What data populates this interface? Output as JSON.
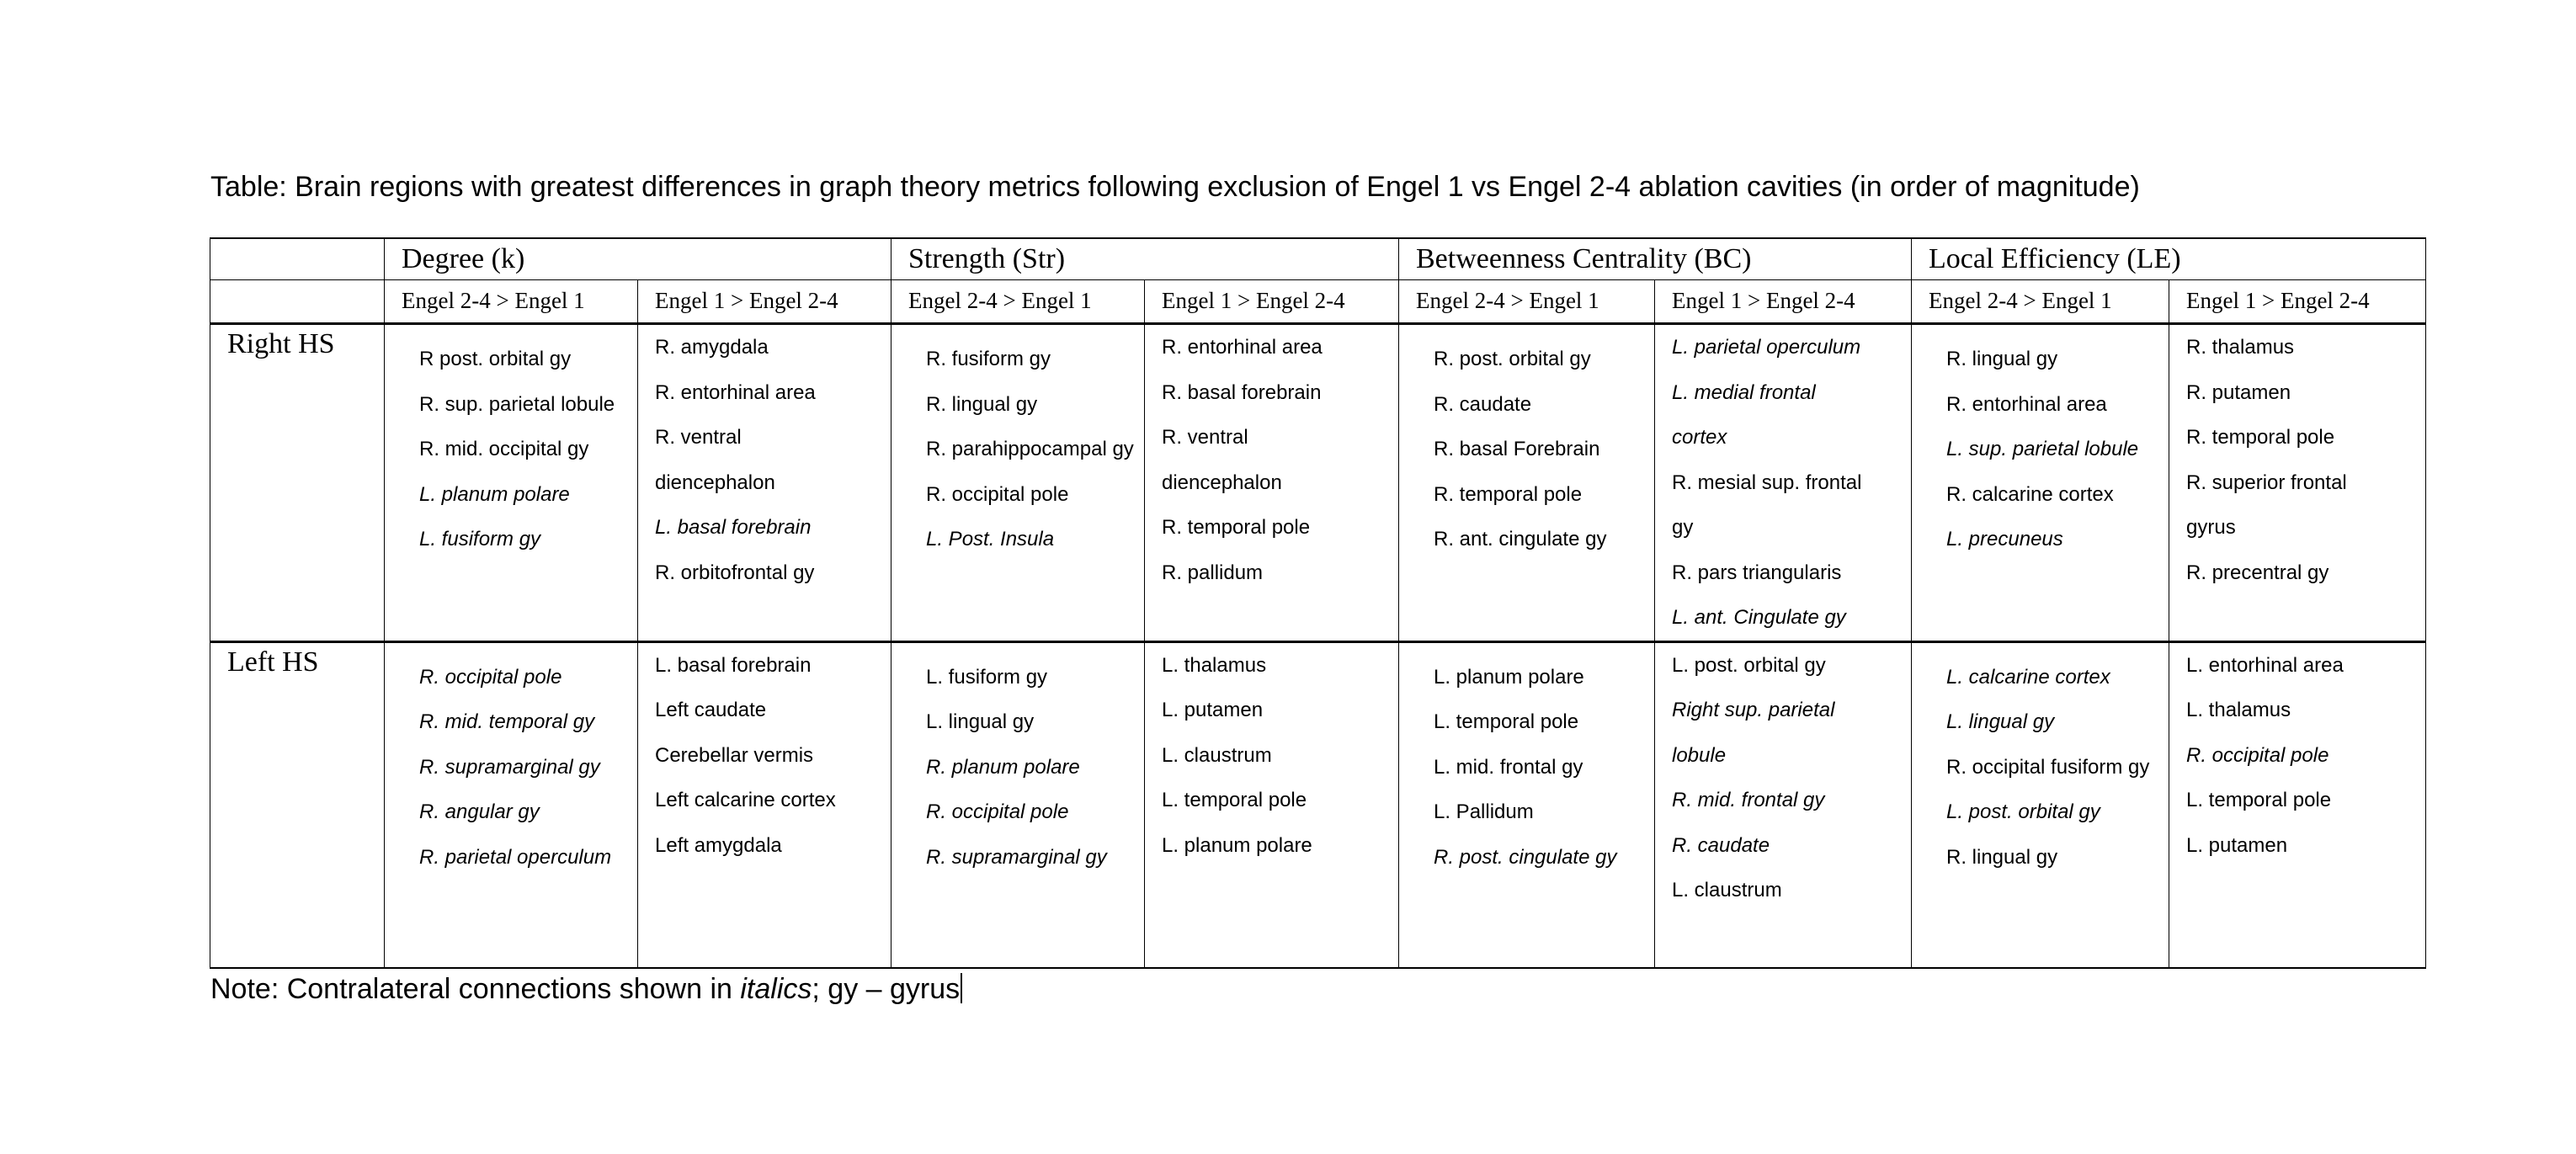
{
  "title": "Table: Brain regions with greatest differences in graph theory metrics following exclusion of Engel 1 vs Engel 2-4 ablation cavities (in order of magnitude)",
  "metrics": [
    "Degree (k)",
    "Strength (Str)",
    "Betweenness Centrality (BC)",
    "Local Efficiency (LE)"
  ],
  "subheaders": [
    "Engel 2-4 > Engel 1",
    "Engel 1 > Engel 2-4",
    "Engel 2-4 > Engel 1",
    "Engel 1 > Engel 2-4",
    "Engel 2-4 > Engel 1",
    "Engel 1 > Engel 2-4",
    "Engel 2-4 > Engel 1",
    "Engel 1 > Engel 2-4"
  ],
  "rows": [
    {
      "label": "Right HS",
      "cells": [
        [
          {
            "t": "R post. orbital gy"
          },
          {
            "t": "R. sup. parietal lobule"
          },
          {
            "t": "R. mid. occipital gy"
          },
          {
            "t": "L. planum polare",
            "i": true
          },
          {
            "t": "L. fusiform gy",
            "i": true
          }
        ],
        [
          {
            "t": "R. amygdala"
          },
          {
            "t": "R. entorhinal area"
          },
          {
            "t": "R. ventral\ndiencephalon"
          },
          {
            "t": "L. basal forebrain",
            "i": true
          },
          {
            "t": "R. orbitofrontal gy"
          }
        ],
        [
          {
            "t": "R. fusiform gy"
          },
          {
            "t": "R. lingual gy"
          },
          {
            "t": "R. parahippocampal gy"
          },
          {
            "t": "R. occipital pole"
          },
          {
            "t": "L. Post. Insula",
            "i": true
          }
        ],
        [
          {
            "t": "R. entorhinal area"
          },
          {
            "t": "R. basal forebrain"
          },
          {
            "t": "R. ventral\ndiencephalon"
          },
          {
            "t": "R. temporal pole"
          },
          {
            "t": "R. pallidum"
          }
        ],
        [
          {
            "t": "R. post. orbital gy"
          },
          {
            "t": "R. caudate"
          },
          {
            "t": "R. basal Forebrain"
          },
          {
            "t": "R. temporal pole"
          },
          {
            "t": "R. ant. cingulate gy"
          }
        ],
        [
          {
            "t": "L. parietal operculum",
            "i": true
          },
          {
            "t": "L. medial frontal\ncortex",
            "i": true
          },
          {
            "t": "R. mesial sup. frontal\ngy"
          },
          {
            "t": "R. pars triangularis"
          },
          {
            "t": "L. ant. Cingulate gy",
            "i": true
          }
        ],
        [
          {
            "t": "R. lingual gy"
          },
          {
            "t": "R. entorhinal area"
          },
          {
            "t": "L. sup. parietal lobule",
            "i": true
          },
          {
            "t": "R. calcarine cortex"
          },
          {
            "t": "L. precuneus",
            "i": true
          }
        ],
        [
          {
            "t": "R. thalamus"
          },
          {
            "t": "R. putamen"
          },
          {
            "t": "R. temporal pole"
          },
          {
            "t": "R. superior frontal\ngyrus"
          },
          {
            "t": "R. precentral gy"
          }
        ]
      ]
    },
    {
      "label": "Left HS",
      "cells": [
        [
          {
            "t": "R. occipital pole",
            "i": true
          },
          {
            "t": "R. mid. temporal gy",
            "i": true
          },
          {
            "t": "R. supramarginal gy",
            "i": true
          },
          {
            "t": "R. angular gy",
            "i": true
          },
          {
            "t": "R. parietal operculum",
            "i": true
          }
        ],
        [
          {
            "t": "L. basal forebrain"
          },
          {
            "t": "Left caudate"
          },
          {
            "t": "Cerebellar vermis"
          },
          {
            "t": "Left calcarine cortex"
          },
          {
            "t": "Left amygdala"
          }
        ],
        [
          {
            "t": "L. fusiform gy"
          },
          {
            "t": "L. lingual gy"
          },
          {
            "t": "R. planum polare",
            "i": true
          },
          {
            "t": "R. occipital pole",
            "i": true
          },
          {
            "t": "R. supramarginal gy",
            "i": true
          }
        ],
        [
          {
            "t": "L. thalamus"
          },
          {
            "t": "L. putamen"
          },
          {
            "t": "L. claustrum"
          },
          {
            "t": "L. temporal pole"
          },
          {
            "t": "L. planum polare"
          }
        ],
        [
          {
            "t": "L. planum polare"
          },
          {
            "t": "L. temporal pole"
          },
          {
            "t": "L. mid. frontal gy"
          },
          {
            "t": "L. Pallidum"
          },
          {
            "t": "R. post. cingulate gy",
            "i": true
          }
        ],
        [
          {
            "t": "L. post. orbital gy"
          },
          {
            "t": "Right sup. parietal\nlobule",
            "i": true
          },
          {
            "t": "R. mid. frontal gy",
            "i": true
          },
          {
            "t": "R. caudate",
            "i": true
          },
          {
            "t": "L. claustrum"
          }
        ],
        [
          {
            "t": "L. calcarine cortex",
            "i": true
          },
          {
            "t": "L. lingual gy",
            "i": true
          },
          {
            "t": "R. occipital fusiform gy"
          },
          {
            "t": "L. post. orbital gy",
            "i": true
          },
          {
            "t": "R. lingual gy"
          }
        ],
        [
          {
            "t": "L. entorhinal area"
          },
          {
            "t": "L. thalamus"
          },
          {
            "t": "R. occipital pole",
            "i": true
          },
          {
            "t": "L. temporal pole"
          },
          {
            "t": "L. putamen"
          }
        ]
      ]
    }
  ],
  "note": {
    "prefix": "Note: Contralateral connections shown in ",
    "italic": "italics",
    "suffix": "; gy – gyrus"
  }
}
